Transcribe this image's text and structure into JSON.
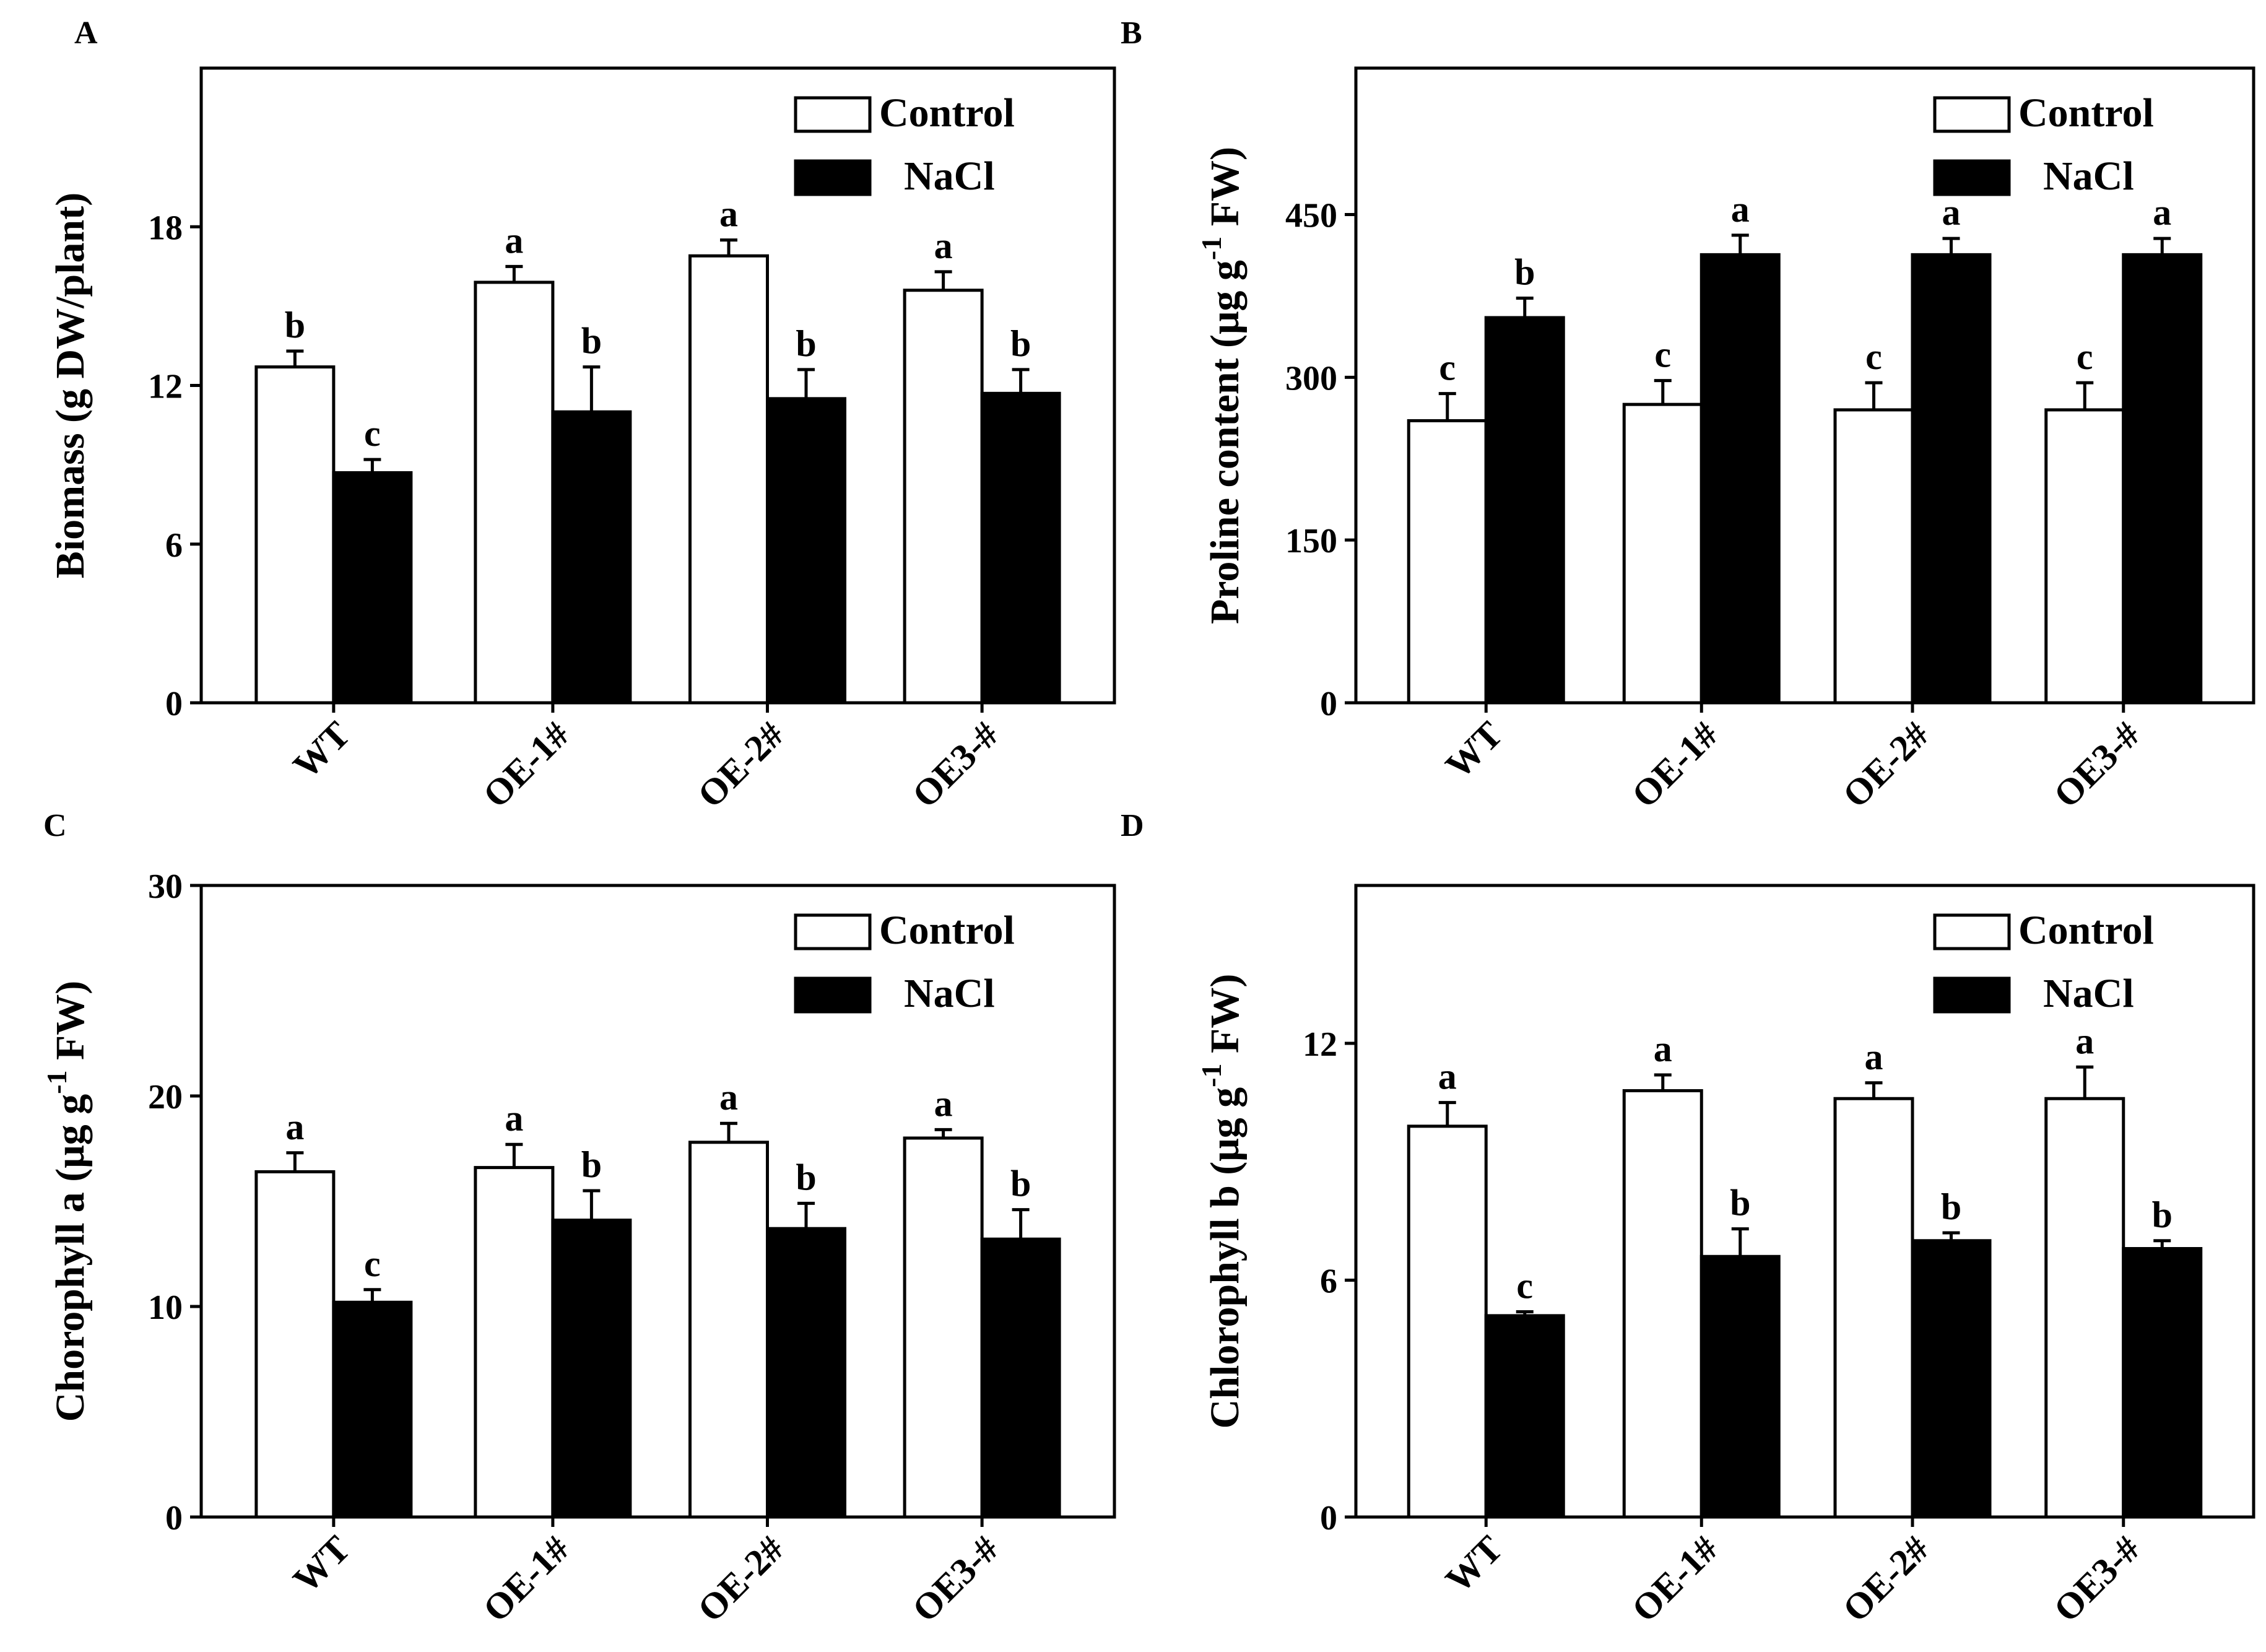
{
  "chart_data": [
    {
      "panel": "A",
      "type": "bar",
      "categories": [
        "WT",
        "OE-1#",
        "OE-2#",
        "OE3-#"
      ],
      "ylabel": "Biomass (g DW/plant)",
      "ylim": [
        0,
        24
      ],
      "yticks": [
        0,
        6,
        12,
        18
      ],
      "legend": {
        "placement": "top-right"
      },
      "series": [
        {
          "name": "Control",
          "fill": "#ffffff",
          "values": [
            12.7,
            15.9,
            16.9,
            15.6
          ],
          "errors": [
            0.6,
            0.6,
            0.6,
            0.7
          ],
          "labels": [
            "b",
            "a",
            "a",
            "a"
          ]
        },
        {
          "name": "NaCl",
          "fill": "#000000",
          "values": [
            8.7,
            11.0,
            11.5,
            11.7
          ],
          "errors": [
            0.5,
            1.7,
            1.1,
            0.9
          ],
          "labels": [
            "c",
            "b",
            "b",
            "b"
          ]
        }
      ]
    },
    {
      "panel": "B",
      "type": "bar",
      "categories": [
        "WT",
        "OE-1#",
        "OE-2#",
        "OE3-#"
      ],
      "ylabel_main": "Proline content (μg g",
      "ylabel_sup": "-1",
      "ylabel_tail": " FW)",
      "ylim": [
        0,
        585
      ],
      "yticks": [
        0,
        150,
        300,
        450
      ],
      "legend": {
        "placement": "top-right"
      },
      "series": [
        {
          "name": "Control",
          "fill": "#ffffff",
          "values": [
            260,
            275,
            270,
            270
          ],
          "errors": [
            25,
            22,
            25,
            25
          ],
          "labels": [
            "c",
            "c",
            "c",
            "c"
          ]
        },
        {
          "name": "NaCl",
          "fill": "#000000",
          "values": [
            355,
            413,
            413,
            413
          ],
          "errors": [
            18,
            18,
            15,
            15
          ],
          "labels": [
            "b",
            "a",
            "a",
            "a"
          ]
        }
      ]
    },
    {
      "panel": "C",
      "type": "bar",
      "categories": [
        "WT",
        "OE-1#",
        "OE-2#",
        "OE3-#"
      ],
      "ylabel_main": "Chorophyll a (μg g",
      "ylabel_sup": "-1",
      "ylabel_tail": " FW)",
      "ylim": [
        0,
        30
      ],
      "yticks": [
        0,
        10,
        20,
        30
      ],
      "legend": {
        "placement": "top-right"
      },
      "series": [
        {
          "name": "Control",
          "fill": "#ffffff",
          "values": [
            16.4,
            16.6,
            17.8,
            18.0
          ],
          "errors": [
            0.9,
            1.1,
            0.9,
            0.4
          ],
          "labels": [
            "a",
            "a",
            "a",
            "a"
          ]
        },
        {
          "name": "NaCl",
          "fill": "#000000",
          "values": [
            10.2,
            14.1,
            13.7,
            13.2
          ],
          "errors": [
            0.6,
            1.4,
            1.2,
            1.4
          ],
          "labels": [
            "c",
            "b",
            "b",
            "b"
          ]
        }
      ]
    },
    {
      "panel": "D",
      "type": "bar",
      "categories": [
        "WT",
        "OE-1#",
        "OE-2#",
        "OE3-#"
      ],
      "ylabel_main": "Chlorophyll b (μg g",
      "ylabel_sup": "-1",
      "ylabel_tail": " FW)",
      "ylim": [
        0,
        16
      ],
      "yticks": [
        0,
        6,
        12
      ],
      "legend": {
        "placement": "top-right"
      },
      "series": [
        {
          "name": "Control",
          "fill": "#ffffff",
          "values": [
            9.9,
            10.8,
            10.6,
            10.6
          ],
          "errors": [
            0.6,
            0.4,
            0.4,
            0.8
          ],
          "labels": [
            "a",
            "a",
            "a",
            "a"
          ]
        },
        {
          "name": "NaCl",
          "fill": "#000000",
          "values": [
            5.1,
            6.6,
            7.0,
            6.8
          ],
          "errors": [
            0.1,
            0.7,
            0.2,
            0.2
          ],
          "labels": [
            "c",
            "b",
            "b",
            "b"
          ]
        }
      ]
    }
  ]
}
